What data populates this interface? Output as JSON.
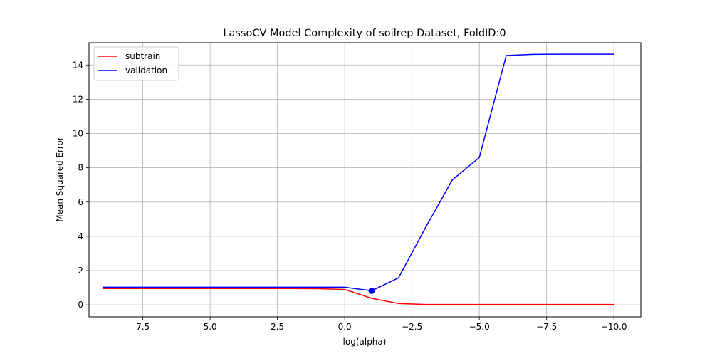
{
  "chart_data": {
    "type": "line",
    "title": "LassoCV Model Complexity of soilrep Dataset, FoldID:0",
    "xlabel": "log(alpha)",
    "ylabel": "Mean Squared Error",
    "x_inverted": true,
    "xlim": [
      9.5,
      -11
    ],
    "ylim": [
      -0.7,
      15.3
    ],
    "xticks": [
      7.5,
      5.0,
      2.5,
      0.0,
      -2.5,
      -5.0,
      -7.5,
      -10.0
    ],
    "xtick_labels": [
      "7.5",
      "5.0",
      "2.5",
      "0.0",
      "−2.5",
      "−5.0",
      "−7.5",
      "−10.0"
    ],
    "yticks": [
      0,
      2,
      4,
      6,
      8,
      10,
      12,
      14
    ],
    "ytick_labels": [
      "0",
      "2",
      "4",
      "6",
      "8",
      "10",
      "12",
      "14"
    ],
    "grid": true,
    "legend_position": "top-left",
    "x": [
      9,
      8,
      7,
      6,
      5,
      4,
      3,
      2,
      1,
      0,
      -1,
      -2,
      -3,
      -4,
      -5,
      -6,
      -7,
      -8,
      -9,
      -10
    ],
    "series": [
      {
        "name": "subtrain",
        "color": "#ff0000",
        "values": [
          0.95,
          0.95,
          0.95,
          0.95,
          0.95,
          0.95,
          0.95,
          0.95,
          0.94,
          0.9,
          0.38,
          0.08,
          0.02,
          0.02,
          0.02,
          0.02,
          0.02,
          0.02,
          0.02,
          0.02
        ]
      },
      {
        "name": "validation",
        "color": "#0000ff",
        "values": [
          1.03,
          1.03,
          1.03,
          1.03,
          1.03,
          1.03,
          1.03,
          1.03,
          1.03,
          1.03,
          0.82,
          1.58,
          4.5,
          7.3,
          8.6,
          14.55,
          14.62,
          14.63,
          14.63,
          14.63
        ]
      }
    ],
    "selected_point": {
      "x": -1,
      "y": 0.82,
      "color": "#0000ff"
    }
  }
}
